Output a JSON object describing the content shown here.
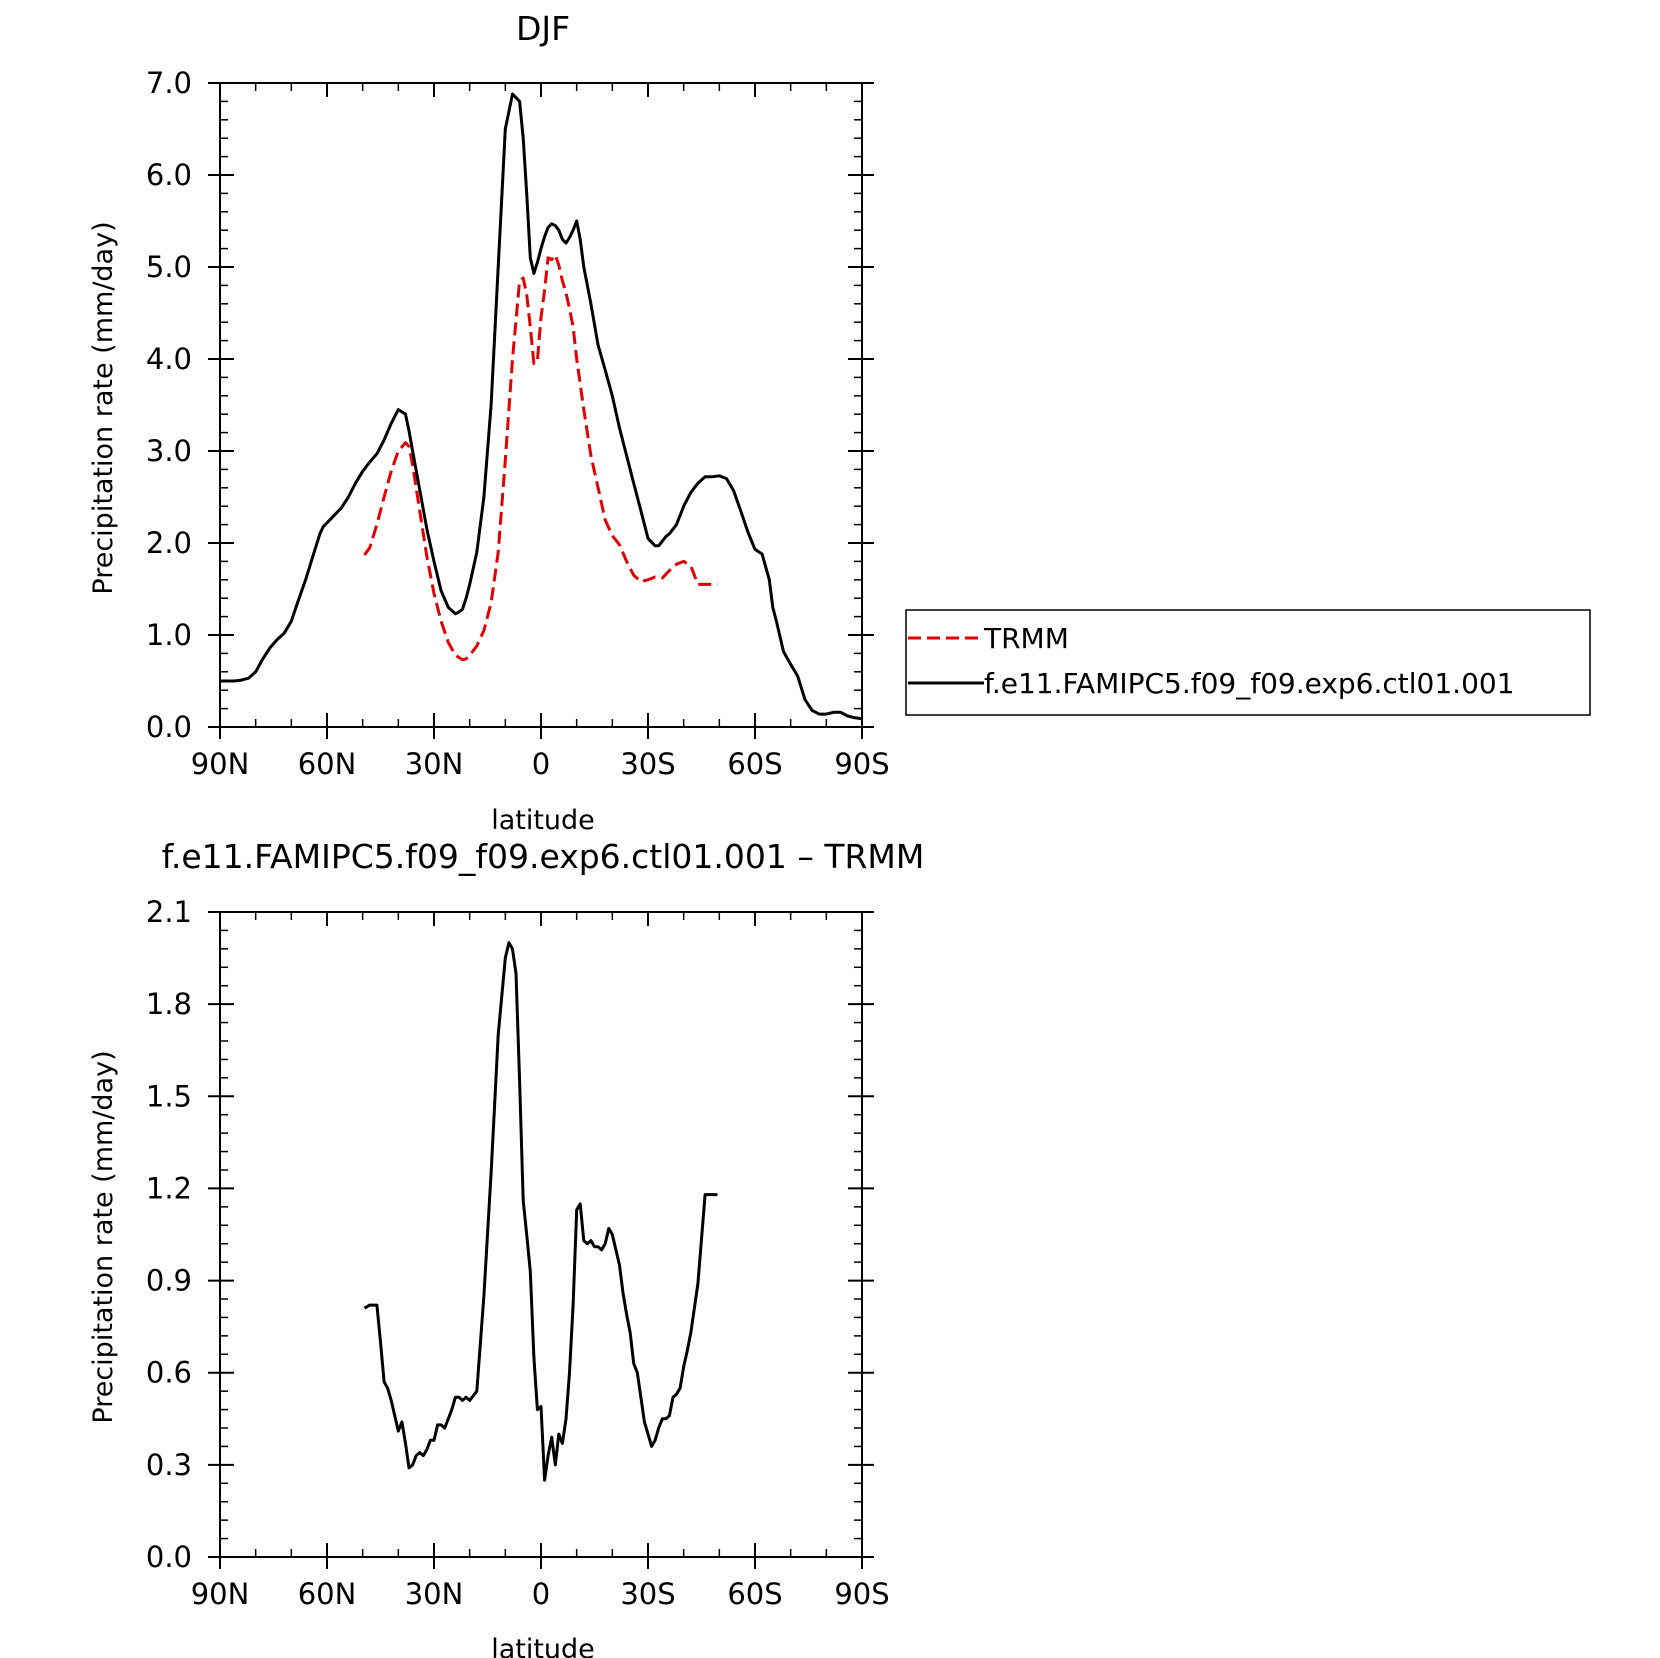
{
  "chart_data": [
    {
      "type": "line",
      "title": "DJF",
      "xlabel": "latitude",
      "ylabel": "Precipitation rate (mm/day)",
      "xlim": [
        90,
        -90
      ],
      "ylim": [
        0,
        7
      ],
      "x_ticks": [
        90,
        60,
        30,
        0,
        -30,
        -60,
        -90
      ],
      "x_tick_labels": [
        "90N",
        "60N",
        "30N",
        "0",
        "30S",
        "60S",
        "90S"
      ],
      "y_ticks": [
        0,
        1,
        2,
        3,
        4,
        5,
        6,
        7
      ],
      "y_tick_labels": [
        "0.0",
        "1.0",
        "2.0",
        "3.0",
        "4.0",
        "5.0",
        "6.0",
        "7.0"
      ],
      "legend_position": "right",
      "series": [
        {
          "name": "TRMM",
          "color": "#e00000",
          "dash": "dashed",
          "x": [
            49.5,
            48,
            46,
            44,
            42,
            40,
            38,
            37,
            36,
            34,
            32,
            30,
            28,
            26,
            24,
            22,
            21,
            20,
            18,
            16,
            14,
            12,
            10,
            8,
            6,
            5,
            4,
            3,
            2,
            1,
            0,
            -1,
            -2,
            -3,
            -4,
            -5,
            -6,
            -7,
            -8,
            -9,
            -10,
            -12,
            -14,
            -16,
            -18,
            -20,
            -22,
            -24,
            -26,
            -28,
            -30,
            -32,
            -34,
            -36,
            -38,
            -40,
            -42,
            -44,
            -46,
            -48,
            -49.5
          ],
          "y": [
            1.87,
            1.95,
            2.2,
            2.5,
            2.78,
            3.0,
            3.09,
            3.05,
            2.85,
            2.35,
            1.85,
            1.45,
            1.15,
            0.92,
            0.78,
            0.73,
            0.74,
            0.78,
            0.88,
            1.05,
            1.35,
            1.9,
            2.9,
            4.0,
            4.85,
            4.88,
            4.7,
            4.35,
            3.95,
            3.98,
            4.45,
            4.75,
            5.1,
            5.08,
            5.13,
            5.02,
            4.85,
            4.72,
            4.55,
            4.35,
            4.0,
            3.45,
            2.95,
            2.6,
            2.25,
            2.08,
            1.98,
            1.8,
            1.65,
            1.58,
            1.6,
            1.63,
            1.62,
            1.7,
            1.77,
            1.8,
            1.75,
            1.55,
            1.55,
            1.55,
            1.55
          ]
        },
        {
          "name": "f.e11.FAMIPC5.f09_f09.exp6.ctl01.001",
          "color": "#000000",
          "dash": "solid",
          "x": [
            90,
            88,
            86,
            84,
            82,
            80,
            78,
            76,
            74,
            72,
            70,
            68,
            66,
            64,
            62,
            61,
            60,
            58,
            56,
            54,
            52,
            50,
            48,
            46,
            44,
            42,
            40,
            38,
            37,
            36,
            34,
            32,
            30,
            28,
            26,
            24,
            23,
            22,
            21,
            20,
            18,
            16,
            14,
            12,
            10,
            8,
            6,
            5,
            4,
            3,
            2,
            1,
            0,
            -1,
            -2,
            -3,
            -4,
            -5,
            -6,
            -7,
            -8,
            -9,
            -10,
            -11,
            -12,
            -14,
            -16,
            -18,
            -20,
            -22,
            -24,
            -26,
            -28,
            -30,
            -32,
            -33,
            -34,
            -35,
            -36,
            -38,
            -40,
            -42,
            -44,
            -46,
            -48,
            -50,
            -52,
            -54,
            -56,
            -58,
            -60,
            -62,
            -64,
            -65,
            -66,
            -68,
            -70,
            -72,
            -74,
            -76,
            -78,
            -80,
            -82,
            -84,
            -86,
            -88,
            -90
          ],
          "y": [
            0.5,
            0.5,
            0.5,
            0.51,
            0.53,
            0.6,
            0.74,
            0.86,
            0.95,
            1.02,
            1.15,
            1.38,
            1.6,
            1.85,
            2.1,
            2.18,
            2.22,
            2.3,
            2.38,
            2.5,
            2.65,
            2.78,
            2.88,
            2.97,
            3.12,
            3.3,
            3.45,
            3.4,
            3.22,
            3.0,
            2.58,
            2.15,
            1.8,
            1.48,
            1.3,
            1.23,
            1.25,
            1.28,
            1.4,
            1.55,
            1.9,
            2.5,
            3.5,
            5.0,
            6.5,
            6.88,
            6.8,
            6.4,
            5.8,
            5.1,
            4.93,
            5.05,
            5.2,
            5.33,
            5.43,
            5.47,
            5.45,
            5.4,
            5.3,
            5.26,
            5.32,
            5.4,
            5.5,
            5.3,
            5.0,
            4.6,
            4.15,
            3.88,
            3.6,
            3.25,
            2.95,
            2.65,
            2.35,
            2.05,
            1.97,
            1.97,
            2.02,
            2.07,
            2.1,
            2.2,
            2.4,
            2.55,
            2.65,
            2.72,
            2.72,
            2.73,
            2.7,
            2.57,
            2.35,
            2.12,
            1.93,
            1.88,
            1.6,
            1.3,
            1.15,
            0.82,
            0.68,
            0.55,
            0.3,
            0.18,
            0.14,
            0.14,
            0.16,
            0.16,
            0.12,
            0.1,
            0.09
          ]
        }
      ]
    },
    {
      "type": "line",
      "title": "f.e11.FAMIPC5.f09_f09.exp6.ctl01.001 – TRMM",
      "xlabel": "latitude",
      "ylabel": "Precipitation rate (mm/day)",
      "xlim": [
        90,
        -90
      ],
      "ylim": [
        0,
        2.1
      ],
      "x_ticks": [
        90,
        60,
        30,
        0,
        -30,
        -60,
        -90
      ],
      "x_tick_labels": [
        "90N",
        "60N",
        "30N",
        "0",
        "30S",
        "60S",
        "90S"
      ],
      "y_ticks": [
        0,
        0.3,
        0.6,
        0.9,
        1.2,
        1.5,
        1.8,
        2.1
      ],
      "y_tick_labels": [
        "0.0",
        "0.3",
        "0.6",
        "0.9",
        "1.2",
        "1.5",
        "1.8",
        "2.1"
      ],
      "series": [
        {
          "color": "#000000",
          "dash": "solid",
          "x": [
            49.5,
            48,
            46,
            45,
            44,
            43,
            42,
            40,
            39,
            38,
            37,
            36,
            35,
            34,
            33,
            32,
            31,
            30,
            29,
            28,
            27,
            26,
            25,
            24,
            23,
            22,
            21,
            20,
            18,
            16,
            14,
            12,
            10,
            9,
            8,
            7,
            6,
            5,
            4,
            3,
            2,
            1,
            0,
            -1,
            -2,
            -3,
            -4,
            -5,
            -6,
            -7,
            -8,
            -9,
            -10,
            -11,
            -12,
            -13,
            -14,
            -15,
            -16,
            -17,
            -18,
            -19,
            -20,
            -21,
            -22,
            -23,
            -24,
            -25,
            -26,
            -27,
            -28,
            -29,
            -30,
            -31,
            -32,
            -33,
            -34,
            -35,
            -36,
            -37,
            -38,
            -39,
            -40,
            -41,
            -42,
            -44,
            -46,
            -48,
            -49.5
          ],
          "y": [
            0.81,
            0.82,
            0.82,
            0.7,
            0.57,
            0.55,
            0.51,
            0.41,
            0.44,
            0.37,
            0.29,
            0.3,
            0.33,
            0.34,
            0.33,
            0.35,
            0.38,
            0.38,
            0.43,
            0.43,
            0.42,
            0.45,
            0.48,
            0.52,
            0.52,
            0.51,
            0.52,
            0.51,
            0.54,
            0.85,
            1.25,
            1.7,
            1.95,
            2.0,
            1.98,
            1.9,
            1.55,
            1.16,
            1.05,
            0.93,
            0.65,
            0.48,
            0.49,
            0.25,
            0.33,
            0.39,
            0.3,
            0.4,
            0.37,
            0.45,
            0.6,
            0.82,
            1.13,
            1.15,
            1.03,
            1.02,
            1.03,
            1.01,
            1.01,
            1.0,
            1.02,
            1.07,
            1.05,
            1.0,
            0.95,
            0.86,
            0.79,
            0.73,
            0.63,
            0.6,
            0.52,
            0.44,
            0.4,
            0.36,
            0.38,
            0.42,
            0.45,
            0.45,
            0.46,
            0.52,
            0.53,
            0.55,
            0.62,
            0.67,
            0.73,
            0.89,
            1.18,
            1.18,
            1.18
          ]
        }
      ]
    }
  ]
}
